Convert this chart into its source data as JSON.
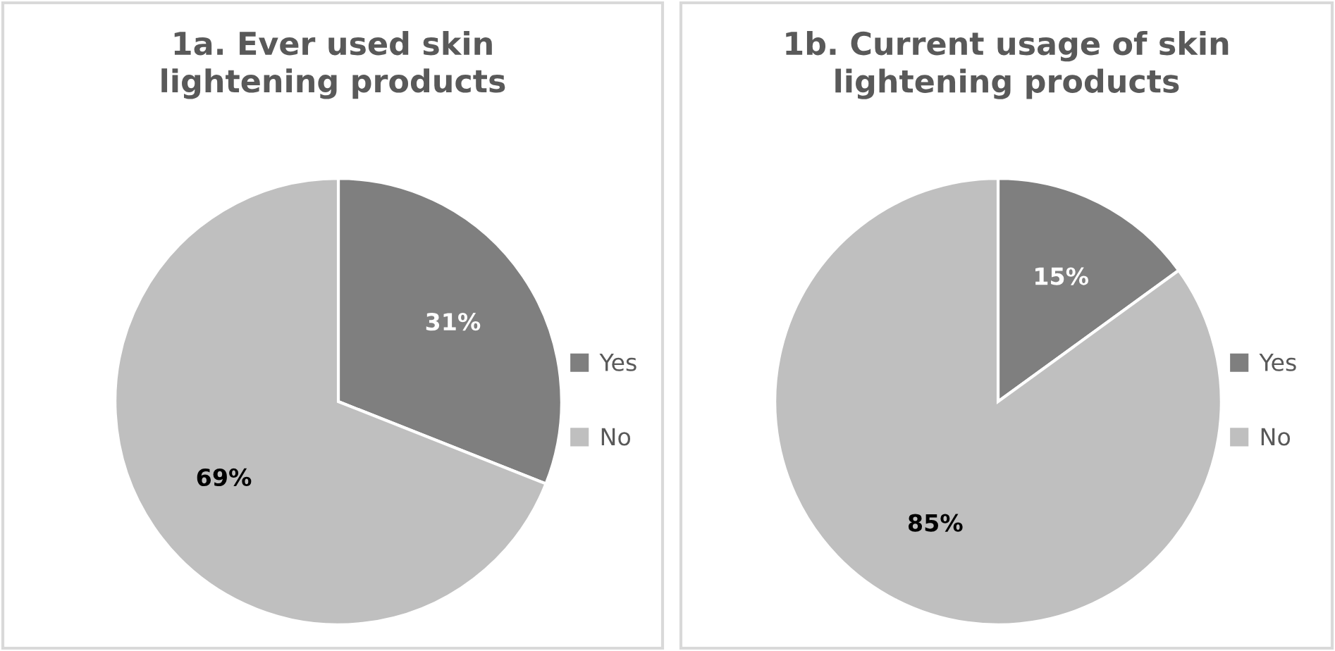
{
  "chart_data": [
    {
      "type": "pie",
      "title": "1a. Ever used skin\nlightening products",
      "categories": [
        "Yes",
        "No"
      ],
      "values": [
        31,
        69
      ],
      "value_labels": [
        "31%",
        "69%"
      ],
      "colors": [
        "#7f7f7f",
        "#bfbfbf"
      ],
      "legend": "right"
    },
    {
      "type": "pie",
      "title": "1b. Current usage of skin\nlightening products",
      "categories": [
        "Yes",
        "No"
      ],
      "values": [
        15,
        85
      ],
      "value_labels": [
        "15%",
        "85%"
      ],
      "colors": [
        "#7f7f7f",
        "#bfbfbf"
      ],
      "legend": "right"
    }
  ]
}
